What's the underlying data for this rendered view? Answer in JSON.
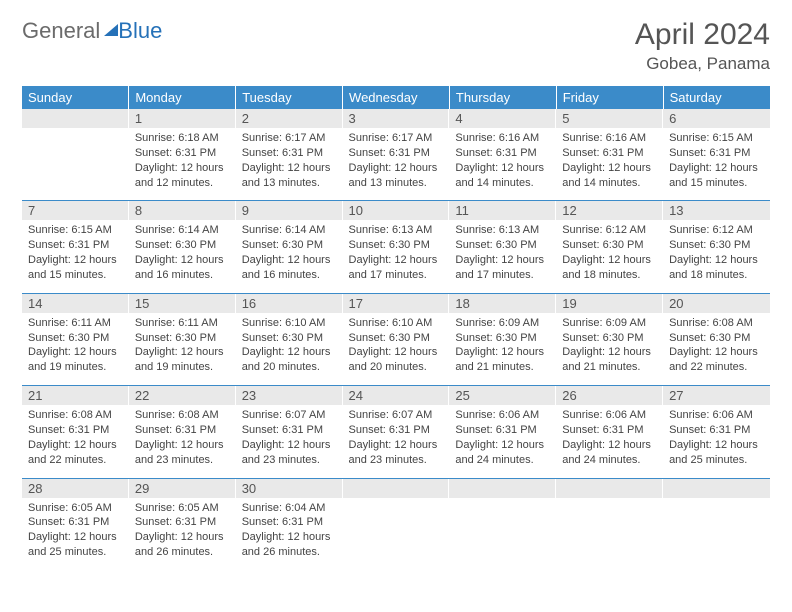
{
  "logo": {
    "part1": "General",
    "part2": "Blue"
  },
  "title": "April 2024",
  "location": "Gobea, Panama",
  "colors": {
    "header_bg": "#3b8bc9",
    "header_text": "#ffffff",
    "daynum_bg": "#e9e9e9",
    "border": "#3b8bc9",
    "text": "#444444",
    "title_text": "#555555",
    "logo_gray": "#6b6b6b",
    "logo_blue": "#2571b8"
  },
  "daysOfWeek": [
    "Sunday",
    "Monday",
    "Tuesday",
    "Wednesday",
    "Thursday",
    "Friday",
    "Saturday"
  ],
  "weeks": [
    [
      {
        "num": "",
        "lines": []
      },
      {
        "num": "1",
        "lines": [
          "Sunrise: 6:18 AM",
          "Sunset: 6:31 PM",
          "Daylight: 12 hours and 12 minutes."
        ]
      },
      {
        "num": "2",
        "lines": [
          "Sunrise: 6:17 AM",
          "Sunset: 6:31 PM",
          "Daylight: 12 hours and 13 minutes."
        ]
      },
      {
        "num": "3",
        "lines": [
          "Sunrise: 6:17 AM",
          "Sunset: 6:31 PM",
          "Daylight: 12 hours and 13 minutes."
        ]
      },
      {
        "num": "4",
        "lines": [
          "Sunrise: 6:16 AM",
          "Sunset: 6:31 PM",
          "Daylight: 12 hours and 14 minutes."
        ]
      },
      {
        "num": "5",
        "lines": [
          "Sunrise: 6:16 AM",
          "Sunset: 6:31 PM",
          "Daylight: 12 hours and 14 minutes."
        ]
      },
      {
        "num": "6",
        "lines": [
          "Sunrise: 6:15 AM",
          "Sunset: 6:31 PM",
          "Daylight: 12 hours and 15 minutes."
        ]
      }
    ],
    [
      {
        "num": "7",
        "lines": [
          "Sunrise: 6:15 AM",
          "Sunset: 6:31 PM",
          "Daylight: 12 hours and 15 minutes."
        ]
      },
      {
        "num": "8",
        "lines": [
          "Sunrise: 6:14 AM",
          "Sunset: 6:30 PM",
          "Daylight: 12 hours and 16 minutes."
        ]
      },
      {
        "num": "9",
        "lines": [
          "Sunrise: 6:14 AM",
          "Sunset: 6:30 PM",
          "Daylight: 12 hours and 16 minutes."
        ]
      },
      {
        "num": "10",
        "lines": [
          "Sunrise: 6:13 AM",
          "Sunset: 6:30 PM",
          "Daylight: 12 hours and 17 minutes."
        ]
      },
      {
        "num": "11",
        "lines": [
          "Sunrise: 6:13 AM",
          "Sunset: 6:30 PM",
          "Daylight: 12 hours and 17 minutes."
        ]
      },
      {
        "num": "12",
        "lines": [
          "Sunrise: 6:12 AM",
          "Sunset: 6:30 PM",
          "Daylight: 12 hours and 18 minutes."
        ]
      },
      {
        "num": "13",
        "lines": [
          "Sunrise: 6:12 AM",
          "Sunset: 6:30 PM",
          "Daylight: 12 hours and 18 minutes."
        ]
      }
    ],
    [
      {
        "num": "14",
        "lines": [
          "Sunrise: 6:11 AM",
          "Sunset: 6:30 PM",
          "Daylight: 12 hours and 19 minutes."
        ]
      },
      {
        "num": "15",
        "lines": [
          "Sunrise: 6:11 AM",
          "Sunset: 6:30 PM",
          "Daylight: 12 hours and 19 minutes."
        ]
      },
      {
        "num": "16",
        "lines": [
          "Sunrise: 6:10 AM",
          "Sunset: 6:30 PM",
          "Daylight: 12 hours and 20 minutes."
        ]
      },
      {
        "num": "17",
        "lines": [
          "Sunrise: 6:10 AM",
          "Sunset: 6:30 PM",
          "Daylight: 12 hours and 20 minutes."
        ]
      },
      {
        "num": "18",
        "lines": [
          "Sunrise: 6:09 AM",
          "Sunset: 6:30 PM",
          "Daylight: 12 hours and 21 minutes."
        ]
      },
      {
        "num": "19",
        "lines": [
          "Sunrise: 6:09 AM",
          "Sunset: 6:30 PM",
          "Daylight: 12 hours and 21 minutes."
        ]
      },
      {
        "num": "20",
        "lines": [
          "Sunrise: 6:08 AM",
          "Sunset: 6:30 PM",
          "Daylight: 12 hours and 22 minutes."
        ]
      }
    ],
    [
      {
        "num": "21",
        "lines": [
          "Sunrise: 6:08 AM",
          "Sunset: 6:31 PM",
          "Daylight: 12 hours and 22 minutes."
        ]
      },
      {
        "num": "22",
        "lines": [
          "Sunrise: 6:08 AM",
          "Sunset: 6:31 PM",
          "Daylight: 12 hours and 23 minutes."
        ]
      },
      {
        "num": "23",
        "lines": [
          "Sunrise: 6:07 AM",
          "Sunset: 6:31 PM",
          "Daylight: 12 hours and 23 minutes."
        ]
      },
      {
        "num": "24",
        "lines": [
          "Sunrise: 6:07 AM",
          "Sunset: 6:31 PM",
          "Daylight: 12 hours and 23 minutes."
        ]
      },
      {
        "num": "25",
        "lines": [
          "Sunrise: 6:06 AM",
          "Sunset: 6:31 PM",
          "Daylight: 12 hours and 24 minutes."
        ]
      },
      {
        "num": "26",
        "lines": [
          "Sunrise: 6:06 AM",
          "Sunset: 6:31 PM",
          "Daylight: 12 hours and 24 minutes."
        ]
      },
      {
        "num": "27",
        "lines": [
          "Sunrise: 6:06 AM",
          "Sunset: 6:31 PM",
          "Daylight: 12 hours and 25 minutes."
        ]
      }
    ],
    [
      {
        "num": "28",
        "lines": [
          "Sunrise: 6:05 AM",
          "Sunset: 6:31 PM",
          "Daylight: 12 hours and 25 minutes."
        ]
      },
      {
        "num": "29",
        "lines": [
          "Sunrise: 6:05 AM",
          "Sunset: 6:31 PM",
          "Daylight: 12 hours and 26 minutes."
        ]
      },
      {
        "num": "30",
        "lines": [
          "Sunrise: 6:04 AM",
          "Sunset: 6:31 PM",
          "Daylight: 12 hours and 26 minutes."
        ]
      },
      {
        "num": "",
        "lines": []
      },
      {
        "num": "",
        "lines": []
      },
      {
        "num": "",
        "lines": []
      },
      {
        "num": "",
        "lines": []
      }
    ]
  ]
}
